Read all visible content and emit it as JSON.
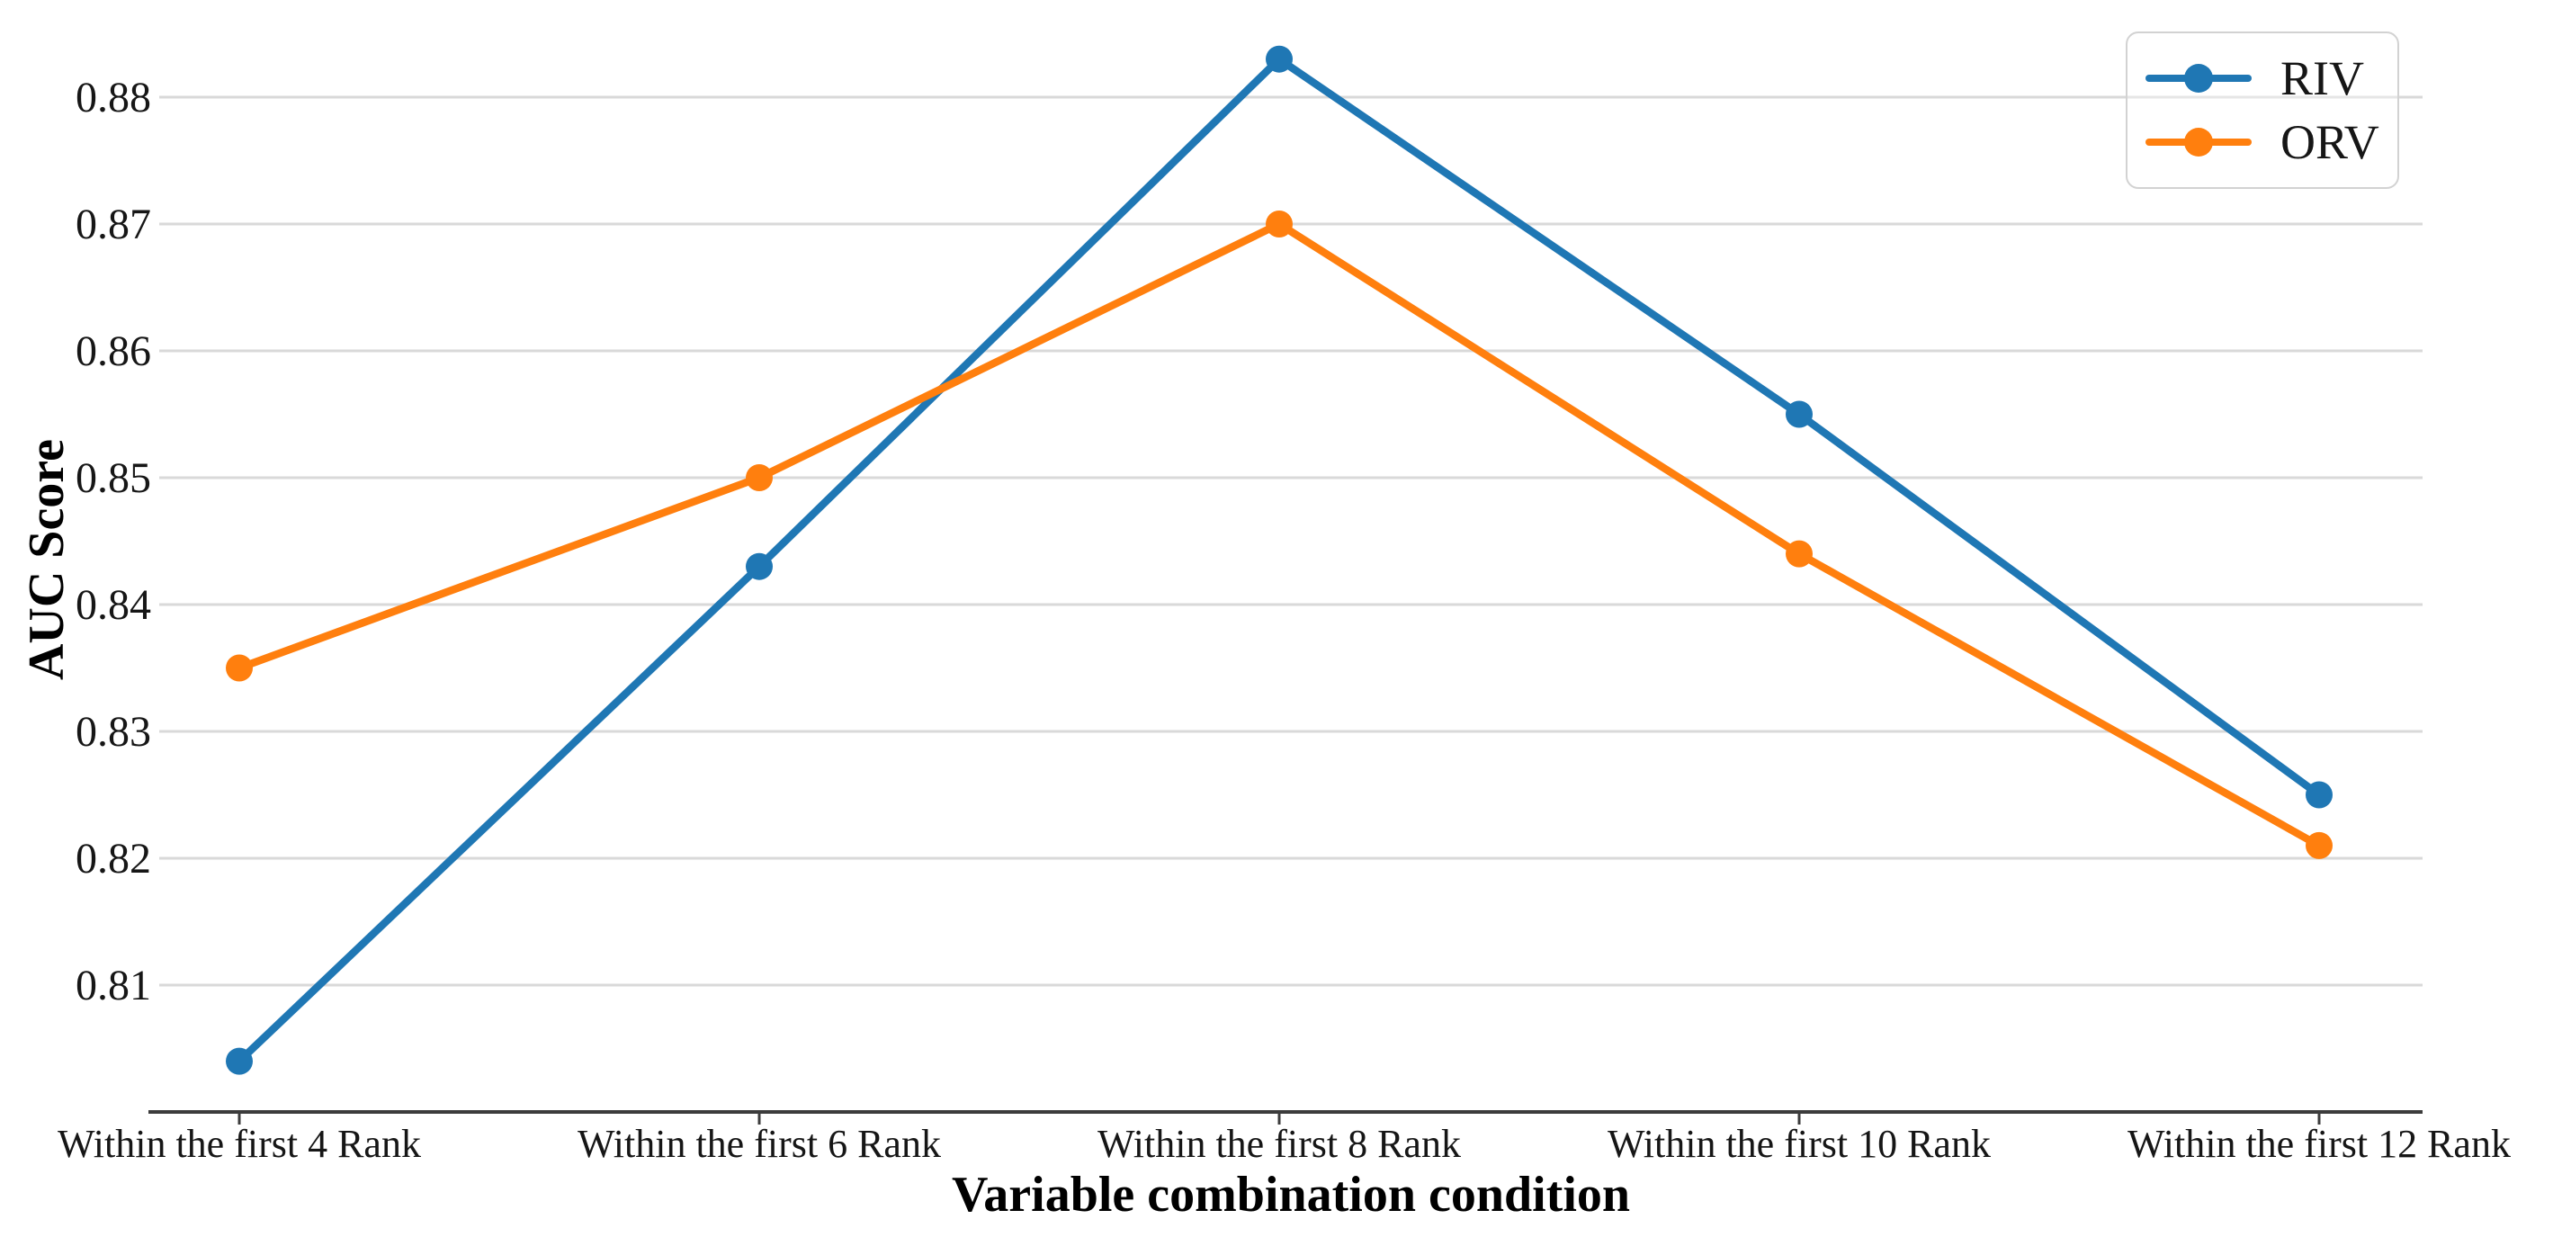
{
  "chart_data": {
    "type": "line",
    "title": "",
    "categories": [
      "Within the first 4 Rank",
      "Within the first 6 Rank",
      "Within the first 8 Rank",
      "Within the first 10 Rank",
      "Within the first 12 Rank"
    ],
    "series": [
      {
        "name": "RIV",
        "color": "#1f77b4",
        "marker": "circle",
        "values": [
          0.804,
          0.843,
          0.883,
          0.855,
          0.825
        ]
      },
      {
        "name": "ORV",
        "color": "#ff7f0e",
        "marker": "circle",
        "values": [
          0.835,
          0.85,
          0.87,
          0.844,
          0.821
        ]
      }
    ],
    "xlabel": "Variable combination condition",
    "ylabel": "AUC Score",
    "yticks": [
      0.81,
      0.82,
      0.83,
      0.84,
      0.85,
      0.86,
      0.87,
      0.88
    ],
    "ylim": [
      0.8,
      0.887
    ],
    "grid": "horizontal",
    "gridline_color": "#d9d9d9",
    "axis_color": "#3c3c3c",
    "legend_position": "upper right"
  }
}
